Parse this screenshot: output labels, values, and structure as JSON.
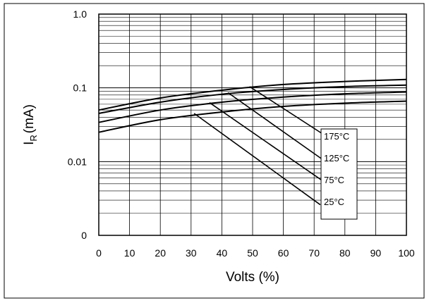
{
  "chart_data": {
    "type": "line",
    "xlabel": "Volts (%)",
    "ylabel": "I",
    "ylabel_subscript": "R",
    "ylabel_unit": "(mA)",
    "x_ticks": [
      0,
      10,
      20,
      30,
      40,
      50,
      60,
      70,
      80,
      90,
      100
    ],
    "xlim": [
      0,
      100
    ],
    "y_scale": "log",
    "ylim": [
      0.001,
      1.0
    ],
    "y_ticks": [
      {
        "value": 0.001,
        "label": "0"
      },
      {
        "value": 0.01,
        "label": "0.01"
      },
      {
        "value": 0.1,
        "label": "0.1"
      },
      {
        "value": 1.0,
        "label": "1.0"
      }
    ],
    "grid": true,
    "series": [
      {
        "name": "175°C",
        "x": [
          0,
          20,
          40,
          60,
          80,
          100
        ],
        "y": [
          0.05,
          0.073,
          0.093,
          0.111,
          0.122,
          0.13
        ],
        "leader": {
          "x": [
            49,
            74
          ],
          "y": [
            0.104,
            0.022
          ]
        }
      },
      {
        "name": "125°C",
        "x": [
          0,
          20,
          40,
          60,
          80,
          100
        ],
        "y": [
          0.045,
          0.064,
          0.082,
          0.095,
          0.104,
          0.109
        ],
        "leader": {
          "x": [
            42,
            73
          ],
          "y": [
            0.086,
            0.0105
          ]
        }
      },
      {
        "name": "75°C",
        "x": [
          0,
          20,
          40,
          60,
          80,
          100
        ],
        "y": [
          0.034,
          0.05,
          0.064,
          0.075,
          0.083,
          0.088
        ],
        "leader": {
          "x": [
            36,
            73
          ],
          "y": [
            0.063,
            0.0054
          ]
        }
      },
      {
        "name": "25°C",
        "x": [
          0,
          20,
          40,
          60,
          80,
          100
        ],
        "y": [
          0.025,
          0.037,
          0.047,
          0.056,
          0.062,
          0.066
        ],
        "leader": {
          "x": [
            31,
            72
          ],
          "y": [
            0.045,
            0.0026
          ]
        }
      }
    ]
  }
}
